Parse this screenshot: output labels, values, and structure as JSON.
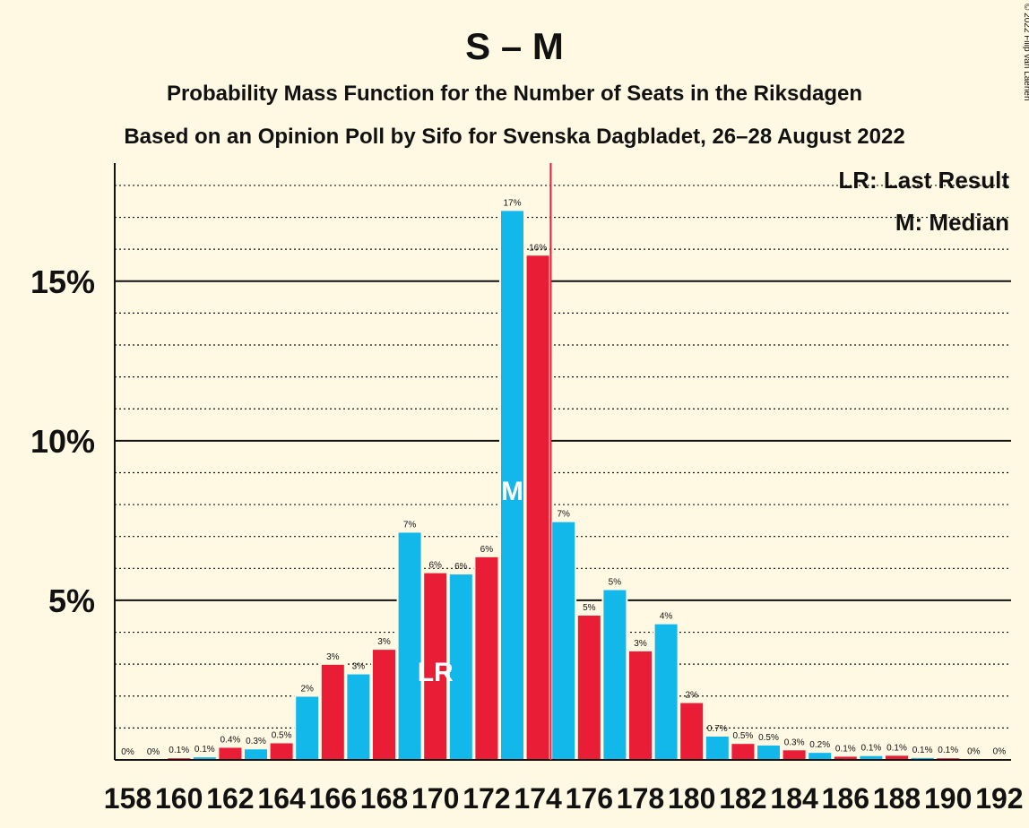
{
  "chart_data": {
    "type": "bar",
    "title": "S – M",
    "subtitle": "Probability Mass Function for the Number of Seats in the Riksdagen",
    "subtitle2": "Based on an Opinion Poll by Sifo for Svenska Dagbladet, 26–28 August 2022",
    "copyright": "© 2022 Filip van Laenen",
    "legend": [
      "LR: Last Result",
      "M: Median"
    ],
    "legend_position": "top-right",
    "ylim": [
      0,
      18.7
    ],
    "yticks": [
      {
        "value": 5,
        "label": "5%"
      },
      {
        "value": 10,
        "label": "10%"
      },
      {
        "value": 15,
        "label": "15%"
      }
    ],
    "grid_minor_step": 1,
    "x": [
      158,
      159,
      160,
      161,
      162,
      163,
      164,
      165,
      166,
      167,
      168,
      169,
      170,
      171,
      172,
      173,
      174,
      175,
      176,
      177,
      178,
      179,
      180,
      181,
      182,
      183,
      184,
      185,
      186,
      187,
      188,
      189,
      190,
      191,
      192
    ],
    "values": [
      0,
      0,
      0.05,
      0.08,
      0.38,
      0.33,
      0.52,
      1.98,
      2.98,
      2.68,
      3.45,
      7.12,
      5.85,
      5.81,
      6.35,
      17.2,
      15.8,
      7.45,
      4.52,
      5.32,
      3.4,
      4.25,
      1.78,
      0.73,
      0.5,
      0.45,
      0.3,
      0.22,
      0.1,
      0.12,
      0.13,
      0.06,
      0.05,
      0.02,
      0.01
    ],
    "data_labels": [
      "0%",
      "0%",
      "0.1%",
      "0.1%",
      "0.4%",
      "0.3%",
      "0.5%",
      "2%",
      "3%",
      "3%",
      "3%",
      "7%",
      "6%",
      "6%",
      "6%",
      "17%",
      "16%",
      "7%",
      "5%",
      "5%",
      "3%",
      "4%",
      "2%",
      "0.7%",
      "0.5%",
      "0.5%",
      "0.3%",
      "0.2%",
      "0.1%",
      "0.1%",
      "0.1%",
      "0.1%",
      "0.1%",
      "0%",
      "0%"
    ],
    "xtick_labels": [
      "158",
      "160",
      "162",
      "164",
      "166",
      "168",
      "170",
      "172",
      "174",
      "176",
      "178",
      "180",
      "182",
      "184",
      "186",
      "188",
      "190",
      "192"
    ],
    "last_result_seat": 170,
    "last_result_label": "LR",
    "median_seat": 173,
    "median_label": "M",
    "majority_line_after_seat": 174,
    "colors": {
      "series_a": "#12B8EA",
      "series_b": "#EA1D37",
      "majority_line": "#EA1D37",
      "background": "#FFF9E3",
      "axis": "#111111"
    }
  }
}
